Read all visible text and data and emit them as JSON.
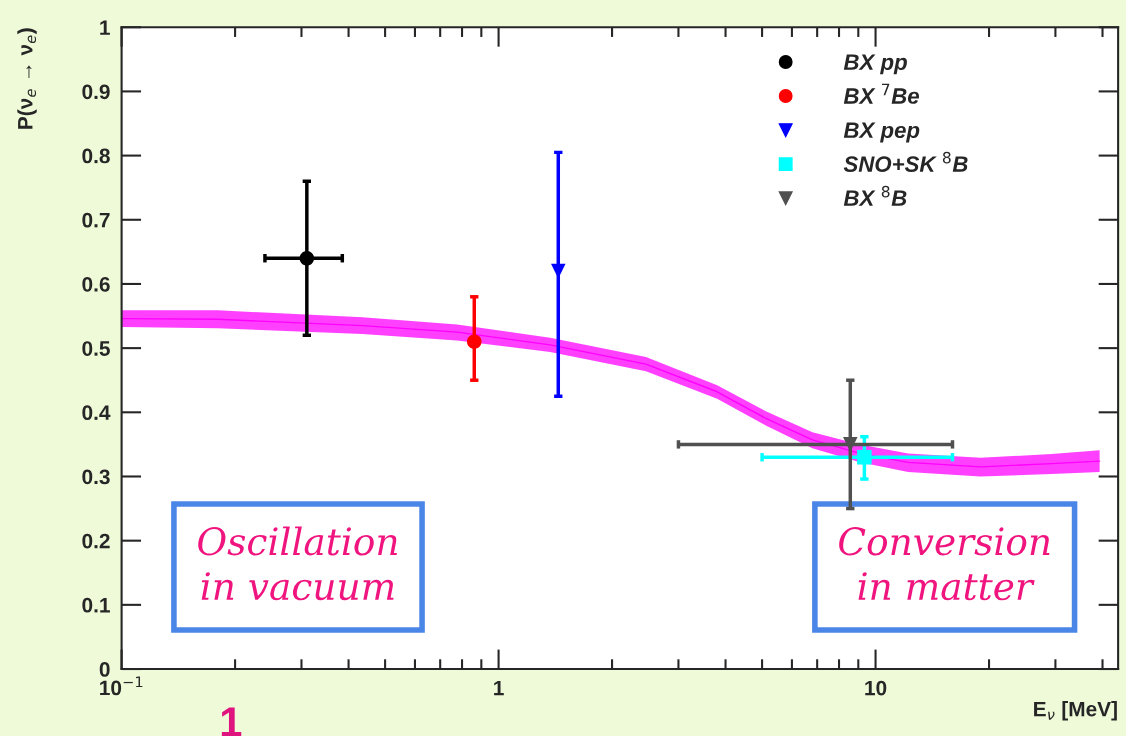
{
  "chart_data": {
    "type": "scatter",
    "xlabel": "E$_{ν}$ [MeV]",
    "ylabel": "P(ν$_{e}$ → ν$_{e}$)",
    "log": "x",
    "xlim": [
      0.1,
      44
    ],
    "ylim": [
      0,
      1
    ],
    "xticks": [
      {
        "value": 0.1,
        "label": "10$^{−1}$"
      },
      1,
      10
    ],
    "yticks": [
      0,
      0.1,
      0.2,
      0.3,
      0.4,
      0.5,
      0.6,
      0.7,
      0.8,
      0.9,
      1
    ],
    "grid": false,
    "legend": "top right",
    "series": [
      {
        "type": "line",
        "color": "#ff00ff",
        "x": [
          0.1,
          0.18,
          0.435,
          0.776,
          1.37,
          2.46,
          3.8,
          5.1,
          6.8,
          9.1,
          12.2,
          19,
          29.3,
          39.3
        ],
        "values": [
          0.546,
          0.545,
          0.535,
          0.525,
          0.505,
          0.475,
          0.432,
          0.391,
          0.357,
          0.336,
          0.322,
          0.315,
          0.32,
          0.324
        ],
        "lower": [
          0.533,
          0.531,
          0.522,
          0.512,
          0.494,
          0.464,
          0.421,
          0.38,
          0.344,
          0.322,
          0.307,
          0.3,
          0.304,
          0.307
        ],
        "upper": [
          0.559,
          0.559,
          0.548,
          0.537,
          0.516,
          0.486,
          0.442,
          0.402,
          0.369,
          0.35,
          0.336,
          0.329,
          0.335,
          0.341
        ]
      },
      {
        "name": "BX pp",
        "color": "#000000",
        "marker": "circle",
        "x": [
          0.31
        ],
        "values": [
          0.64
        ],
        "errors": [
          [
            0.52,
            0.76
          ]
        ],
        "xerrors": [
          [
            0.24,
            0.385
          ]
        ]
      },
      {
        "name": "BX $^{7}$Be",
        "color": "#ff0000",
        "marker": "circle",
        "x": [
          0.862
        ],
        "values": [
          0.51
        ],
        "errors": [
          [
            0.45,
            0.58
          ]
        ]
      },
      {
        "name": "BX pep",
        "color": "#0000ff",
        "marker": "triangle",
        "x": [
          1.44
        ],
        "values": [
          0.62
        ],
        "errors": [
          [
            0.425,
            0.805
          ]
        ]
      },
      {
        "name": "SNO+SK $^{8}$B",
        "color": "#00ffff",
        "marker": "square",
        "x": [
          9.34
        ],
        "values": [
          0.33
        ],
        "errors": [
          [
            0.296,
            0.362
          ]
        ],
        "xerrors": [
          [
            5,
            16
          ]
        ]
      },
      {
        "name": "BX $^{8}$B",
        "color": "#505050",
        "marker": "triangle",
        "x": [
          8.57
        ],
        "values": [
          0.35
        ],
        "errors": [
          [
            0.25,
            0.45
          ]
        ],
        "xerrors": [
          [
            3,
            16
          ]
        ]
      }
    ],
    "annotations": [
      "Oscillation\nin vacuum",
      "Conversion\nin matter",
      "1"
    ]
  }
}
